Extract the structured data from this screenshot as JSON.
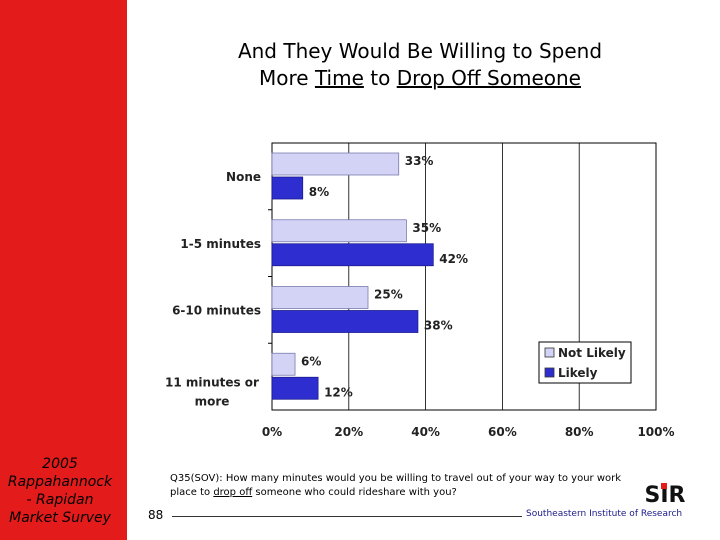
{
  "slide": {
    "title_line1": "And They Would Be Willing to Spend",
    "title_line2_a": "More ",
    "title_line2_b": "Time",
    "title_line2_c": " to ",
    "title_line2_d": "Drop Off Someone",
    "sidebar_lines": [
      "2005",
      "Rappahannock",
      "- Rapidan",
      "Market Survey"
    ],
    "question_a": "Q35(SOV): How many minutes would you be willing to travel out of your way to your work place to ",
    "question_b": "drop off",
    "question_c": " someone who could rideshare with you?",
    "page_number": "88",
    "org": "Southeastern Institute of Research",
    "logo_text": "SIR"
  },
  "colors": {
    "sidebar": "#e31b1b",
    "not_likely": "#d3d3f5",
    "likely": "#2e2ed0"
  },
  "chart_data": {
    "type": "bar",
    "orientation": "horizontal",
    "categories": [
      "None",
      "1-5 minutes",
      "6-10 minutes",
      "11 minutes or more"
    ],
    "series": [
      {
        "name": "Not Likely",
        "values": [
          33,
          35,
          25,
          6
        ]
      },
      {
        "name": "Likely",
        "values": [
          8,
          42,
          38,
          12
        ]
      }
    ],
    "value_labels": [
      [
        "33%",
        "35%",
        "25%",
        "6%"
      ],
      [
        "8%",
        "42%",
        "38%",
        "12%"
      ]
    ],
    "xlim": [
      0,
      100
    ],
    "ticks": [
      0,
      20,
      40,
      60,
      80,
      100
    ],
    "tick_labels": [
      "0%",
      "20%",
      "40%",
      "60%",
      "80%",
      "100%"
    ],
    "grid": true,
    "legend": "right"
  }
}
